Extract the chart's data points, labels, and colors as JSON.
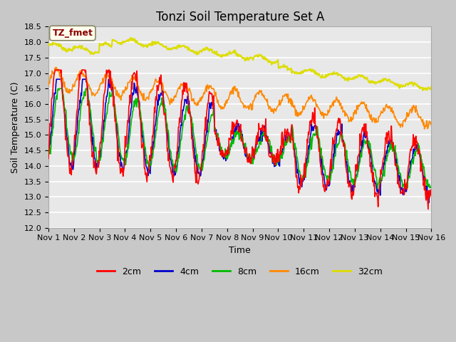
{
  "title": "Tonzi Soil Temperature Set A",
  "xlabel": "Time",
  "ylabel": "Soil Temperature (C)",
  "ylim": [
    12.0,
    18.5
  ],
  "annotation_text": "TZ_fmet",
  "annotation_color": "#8B0000",
  "annotation_bg": "#FFFFEE",
  "colors": {
    "2cm": "#FF0000",
    "4cm": "#0000CC",
    "8cm": "#00BB00",
    "16cm": "#FF8800",
    "32cm": "#DDDD00"
  },
  "legend_labels": [
    "2cm",
    "4cm",
    "8cm",
    "16cm",
    "32cm"
  ],
  "title_fontsize": 12,
  "label_fontsize": 9,
  "tick_fontsize": 8
}
